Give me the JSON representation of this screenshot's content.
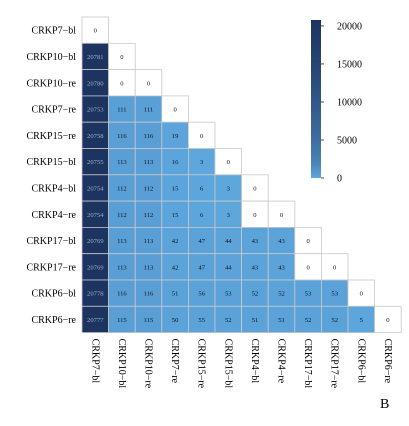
{
  "panel_label": "B",
  "chart_data": {
    "type": "heatmap",
    "title": "",
    "xlabel": "",
    "ylabel": "",
    "shape": "lower-triangle",
    "rows": [
      "CRKP7−bl",
      "CRKP10−bl",
      "CRKP10−re",
      "CRKP7−re",
      "CRKP15−re",
      "CRKP15−bl",
      "CRKP4−bl",
      "CRKP4−re",
      "CRKP17−bl",
      "CRKP17−re",
      "CRKP6−bl",
      "CRKP6−re"
    ],
    "columns": [
      "CRKP7−bl",
      "CRKP10−bl",
      "CRKP10−re",
      "CRKP7−re",
      "CRKP15−re",
      "CRKP15−bl",
      "CRKP4−bl",
      "CRKP4−re",
      "CRKP17−bl",
      "CRKP17−re",
      "CRKP6−bl",
      "CRKP6−re"
    ],
    "values": [
      [
        0
      ],
      [
        20781,
        0
      ],
      [
        20780,
        0,
        0
      ],
      [
        20753,
        111,
        111,
        0
      ],
      [
        20758,
        116,
        116,
        19,
        0
      ],
      [
        20755,
        113,
        113,
        16,
        3,
        0
      ],
      [
        20754,
        112,
        112,
        15,
        6,
        3,
        0
      ],
      [
        20754,
        112,
        112,
        15,
        6,
        3,
        0,
        0
      ],
      [
        20769,
        113,
        113,
        42,
        47,
        44,
        43,
        43,
        0
      ],
      [
        20769,
        113,
        113,
        42,
        47,
        44,
        43,
        43,
        0,
        0
      ],
      [
        20778,
        116,
        116,
        51,
        56,
        53,
        52,
        52,
        53,
        53,
        0
      ],
      [
        20777,
        115,
        115,
        50,
        55,
        52,
        51,
        51,
        52,
        52,
        5,
        0
      ]
    ],
    "colorbar": {
      "range": [
        0,
        20781
      ],
      "ticks": [
        0,
        5000,
        10000,
        15000,
        20000
      ],
      "tick_labels": [
        "0",
        "5000",
        "10000",
        "15000",
        "20000"
      ],
      "color_low": "#5ea8df",
      "color_high": "#1d3461",
      "zero_color": "#ffffff"
    },
    "grid": true,
    "cell_border_color": "#c9c9c9"
  }
}
